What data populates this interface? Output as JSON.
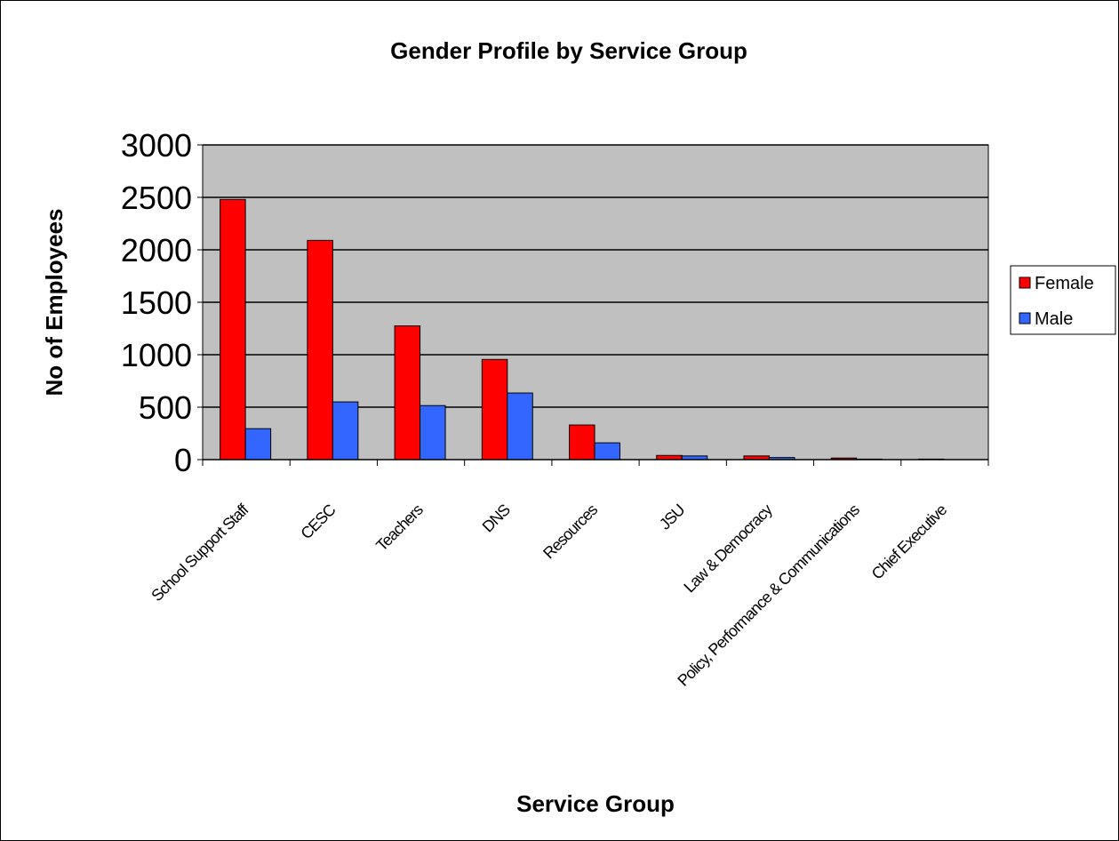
{
  "chart_data": {
    "type": "bar",
    "title": "Gender Profile by Service Group",
    "xlabel": "Service Group",
    "ylabel": "No of Employees",
    "ylim": [
      0,
      3000
    ],
    "yticks": [
      "0",
      "500",
      "1000",
      "1500",
      "2000",
      "2500",
      "3000"
    ],
    "categories": [
      "School Support Staff",
      "CESC",
      "Teachers",
      "DNS",
      "Resources",
      "JSU",
      "Law & Democracy",
      "Policy, Performance & Communications",
      "Chief Executive"
    ],
    "series": [
      {
        "name": "Female",
        "color": "#ff0000",
        "values": [
          2480,
          2090,
          1275,
          955,
          330,
          40,
          35,
          15,
          5
        ]
      },
      {
        "name": "Male",
        "color": "#3366ff",
        "values": [
          295,
          550,
          515,
          635,
          160,
          35,
          20,
          5,
          0
        ]
      }
    ],
    "grid": true,
    "plot_background": "#c0c0c0",
    "legend_position": "right"
  }
}
